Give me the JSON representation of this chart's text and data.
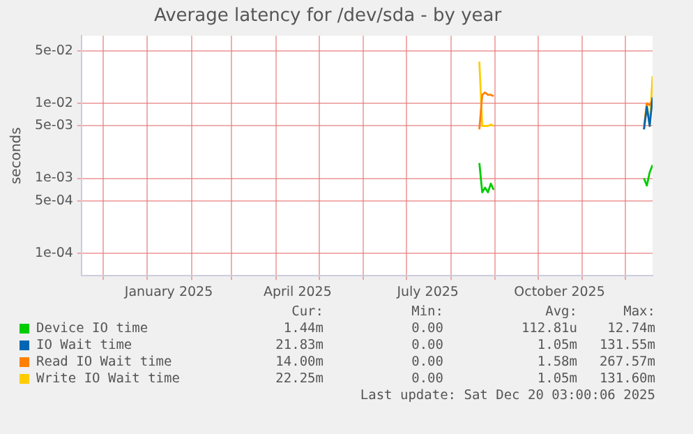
{
  "chart_data": {
    "type": "line",
    "title": "Average latency for /dev/sda - by year",
    "ylabel": "seconds",
    "log": true,
    "grid": true,
    "legend": "bottom",
    "marker": "none",
    "line_style": "solid",
    "x": [
      "2025-08-21",
      "2025-08-23",
      "2025-08-25",
      "2025-08-27",
      "2025-08-29",
      "2025-08-31",
      "2025-09-02",
      "2025-09-03",
      "2025-12-13",
      "2025-12-14",
      "2025-12-16",
      "2025-12-18",
      "2025-12-20"
    ],
    "xlim": [
      "2024-11-16",
      "2025-12-20"
    ],
    "xticks": [
      {
        "value": "2024-12-01",
        "label": null
      },
      {
        "value": "2025-01-01",
        "label": null
      },
      {
        "value": "2025-01-16",
        "label": "January 2025"
      },
      {
        "value": "2025-02-01",
        "label": null
      },
      {
        "value": "2025-03-01",
        "label": null
      },
      {
        "value": "2025-04-01",
        "label": null
      },
      {
        "value": "2025-04-16",
        "label": "April 2025"
      },
      {
        "value": "2025-05-01",
        "label": null
      },
      {
        "value": "2025-06-01",
        "label": null
      },
      {
        "value": "2025-07-01",
        "label": null
      },
      {
        "value": "2025-07-16",
        "label": "July 2025"
      },
      {
        "value": "2025-08-01",
        "label": null
      },
      {
        "value": "2025-09-01",
        "label": null
      },
      {
        "value": "2025-10-01",
        "label": null
      },
      {
        "value": "2025-10-16",
        "label": "October 2025"
      },
      {
        "value": "2025-11-01",
        "label": null
      },
      {
        "value": "2025-12-01",
        "label": null
      }
    ],
    "ylim": [
      5e-05,
      0.08
    ],
    "yticks": [
      {
        "value": 0.0001,
        "label": "1e-04"
      },
      {
        "value": 0.0005,
        "label": "5e-04"
      },
      {
        "value": 0.001,
        "label": "1e-03"
      },
      {
        "value": 0.005,
        "label": "5e-03"
      },
      {
        "value": 0.01,
        "label": "1e-02"
      },
      {
        "value": 0.05,
        "label": "5e-02"
      }
    ],
    "series": [
      {
        "name": "Device IO time",
        "color": "#00cc00",
        "values": [
          0.0016,
          0.00065,
          0.00075,
          0.00065,
          0.00085,
          0.0007,
          null,
          null,
          null,
          0.001,
          0.0008,
          0.0012,
          0.0015
        ]
      },
      {
        "name": "IO Wait time",
        "color": "#0066b3",
        "values": [
          null,
          null,
          null,
          null,
          null,
          null,
          null,
          null,
          null,
          0.0045,
          0.009,
          0.005,
          0.012
        ]
      },
      {
        "name": "Read IO Wait time",
        "color": "#ff8000",
        "values": [
          0.0045,
          0.013,
          0.014,
          0.013,
          0.013,
          0.0125,
          null,
          null,
          null,
          0.0045,
          0.01,
          0.0095,
          0.011
        ]
      },
      {
        "name": "Write IO Wait time",
        "color": "#ffcc00",
        "values": [
          0.036,
          0.005,
          0.005,
          0.005,
          0.0052,
          0.005,
          null,
          null,
          null,
          0.005,
          0.01,
          0.005,
          0.023
        ]
      }
    ],
    "annotations": [
      "Cur:",
      "Min:",
      "Avg:",
      "Max:",
      "1.44m",
      "0.00",
      "112.81u",
      "12.74m",
      "21.83m",
      "0.00",
      "1.05m",
      "131.55m",
      "14.00m",
      "0.00",
      "1.58m",
      "267.57m",
      "22.25m",
      "0.00",
      "1.05m",
      "131.60m",
      "Last update: Sat Dec 20 03:00:06 2025"
    ]
  }
}
